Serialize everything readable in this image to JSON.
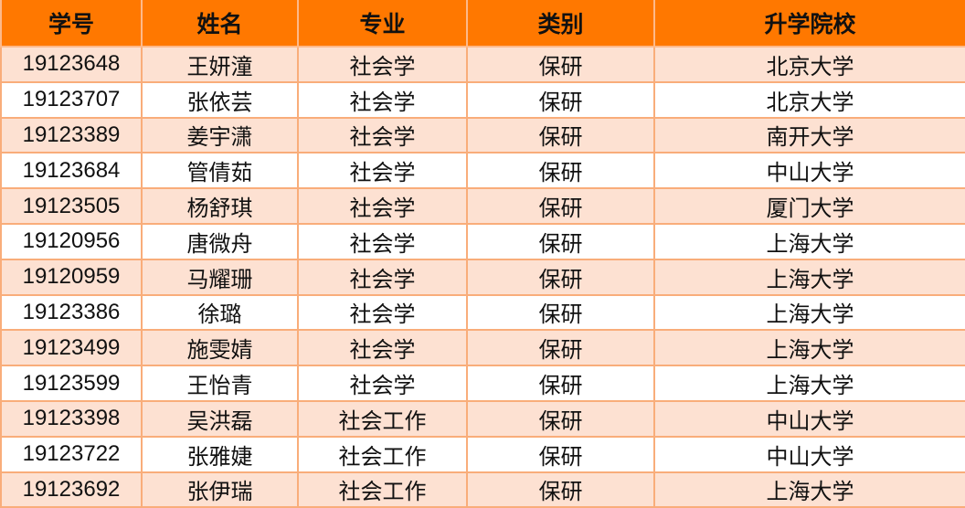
{
  "headers": [
    "学号",
    "姓名",
    "专业",
    "类别",
    "升学院校"
  ],
  "rows": [
    [
      "19123648",
      "王妍潼",
      "社会学",
      "保研",
      "北京大学"
    ],
    [
      "19123707",
      "张依芸",
      "社会学",
      "保研",
      "北京大学"
    ],
    [
      "19123389",
      "姜宇潇",
      "社会学",
      "保研",
      "南开大学"
    ],
    [
      "19123684",
      "管倩茹",
      "社会学",
      "保研",
      "中山大学"
    ],
    [
      "19123505",
      "杨舒琪",
      "社会学",
      "保研",
      "厦门大学"
    ],
    [
      "19120956",
      "唐微舟",
      "社会学",
      "保研",
      "上海大学"
    ],
    [
      "19120959",
      "马耀珊",
      "社会学",
      "保研",
      "上海大学"
    ],
    [
      "19123386",
      "徐璐",
      "社会学",
      "保研",
      "上海大学"
    ],
    [
      "19123499",
      "施雯婧",
      "社会学",
      "保研",
      "上海大学"
    ],
    [
      "19123599",
      "王怡青",
      "社会学",
      "保研",
      "上海大学"
    ],
    [
      "19123398",
      "吴洪磊",
      "社会工作",
      "保研",
      "中山大学"
    ],
    [
      "19123722",
      "张雅婕",
      "社会工作",
      "保研",
      "中山大学"
    ],
    [
      "19123692",
      "张伊瑞",
      "社会工作",
      "保研",
      "上海大学"
    ]
  ],
  "colors": {
    "header": "#FF7800",
    "stripe": "#FDE1D2",
    "border": "#F9AD7A"
  }
}
